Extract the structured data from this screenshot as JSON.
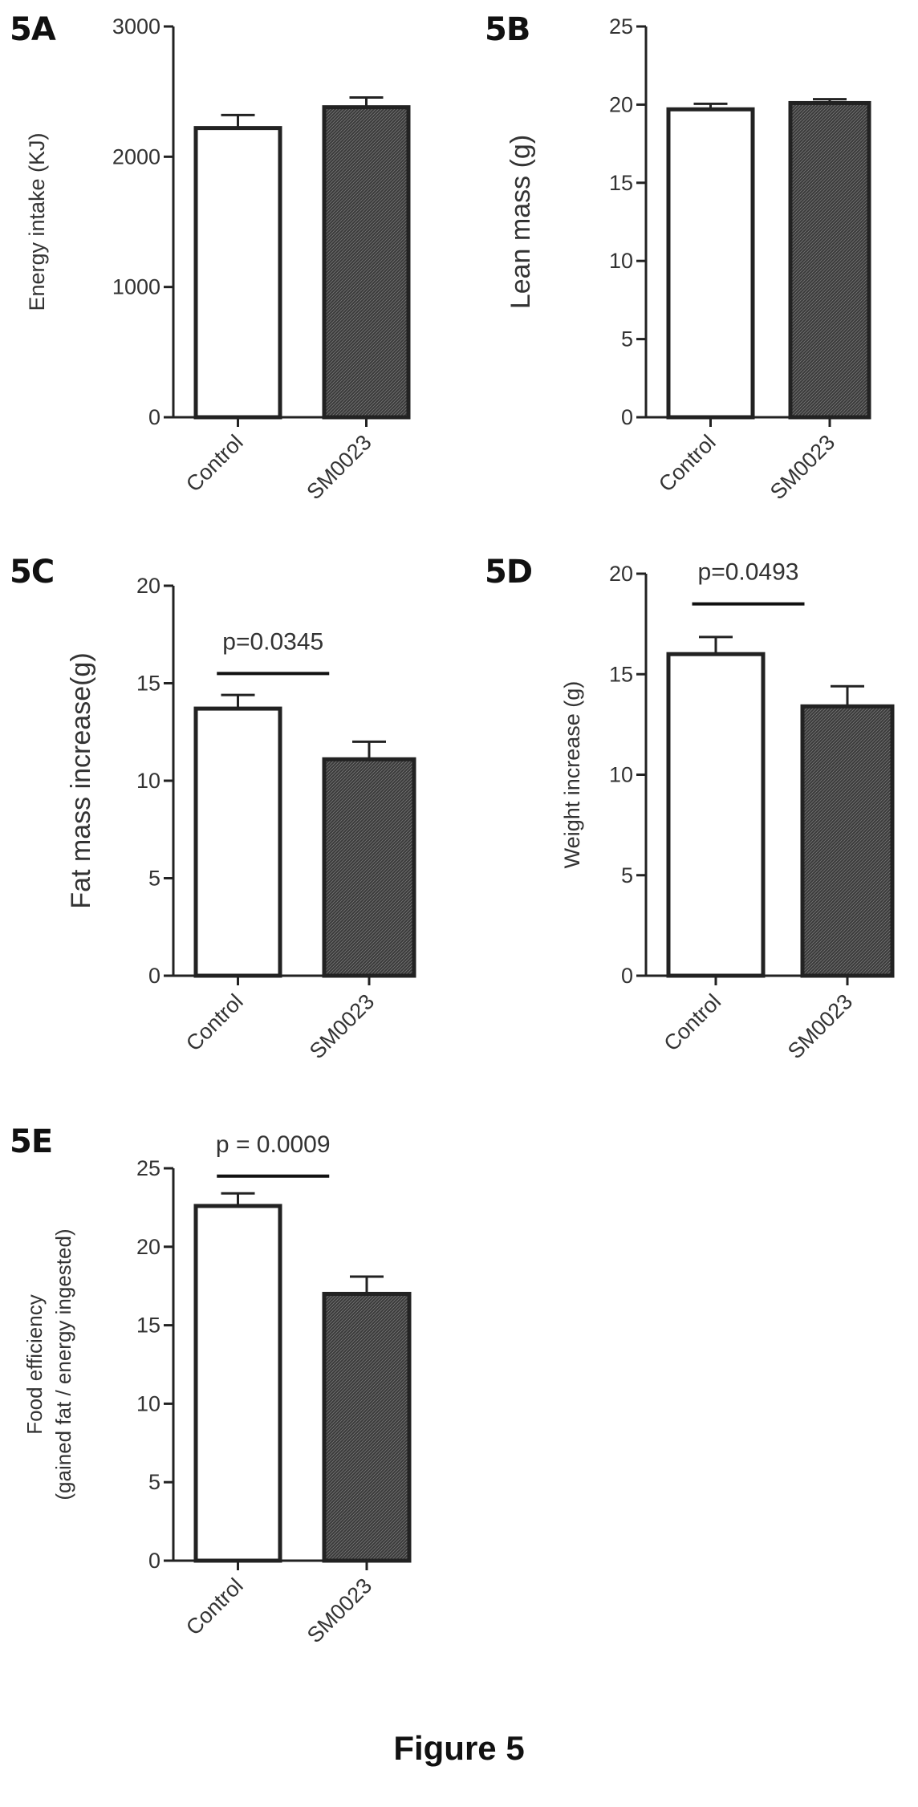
{
  "figure": {
    "caption": "Figure 5"
  },
  "colors": {
    "control_fill": "#ffffff",
    "treatment_fill": "#3a3a3a",
    "axis": "#222222"
  },
  "chart_data": [
    {
      "panel": "5A",
      "type": "bar",
      "categories": [
        "Control",
        "SM0023"
      ],
      "values": [
        2220,
        2380
      ],
      "errors": [
        100,
        75
      ],
      "ylabel": "Energy intake (KJ)",
      "ylim": [
        0,
        3000
      ],
      "yticks": [
        0,
        1000,
        2000,
        3000
      ],
      "annotation": null
    },
    {
      "panel": "5B",
      "type": "bar",
      "categories": [
        "Control",
        "SM0023"
      ],
      "values": [
        19.7,
        20.1
      ],
      "errors": [
        0.35,
        0.25
      ],
      "ylabel": "Lean mass (g)",
      "ylim": [
        0,
        25
      ],
      "yticks": [
        0,
        5,
        10,
        15,
        20,
        25
      ],
      "annotation": null
    },
    {
      "panel": "5C",
      "type": "bar",
      "categories": [
        "Control",
        "SM0023"
      ],
      "values": [
        13.7,
        11.1
      ],
      "errors": [
        0.7,
        0.9
      ],
      "ylabel": "Fat mass increase(g)",
      "ylim": [
        0,
        20
      ],
      "yticks": [
        0,
        5,
        10,
        15,
        20
      ],
      "annotation": {
        "text": "p=0.0345",
        "bracket_y": 15.5
      }
    },
    {
      "panel": "5D",
      "type": "bar",
      "categories": [
        "Control",
        "SM0023"
      ],
      "values": [
        16.0,
        13.4
      ],
      "errors": [
        0.85,
        1.0
      ],
      "ylabel": "Weight increase (g)",
      "ylim": [
        0,
        20
      ],
      "yticks": [
        0,
        5,
        10,
        15,
        20
      ],
      "annotation": {
        "text": "p=0.0493",
        "bracket_y": 18.5
      }
    },
    {
      "panel": "5E",
      "type": "bar",
      "categories": [
        "Control",
        "SM0023"
      ],
      "values": [
        22.6,
        17.0
      ],
      "errors": [
        0.8,
        1.1
      ],
      "ylabel": "Food efficiency",
      "ylabel2": "(gained fat / energy ingested)",
      "ylim": [
        0,
        25
      ],
      "yticks": [
        0,
        5,
        10,
        15,
        20,
        25
      ],
      "annotation": {
        "text": "p = 0.0009",
        "bracket_y": 24.5
      }
    }
  ]
}
